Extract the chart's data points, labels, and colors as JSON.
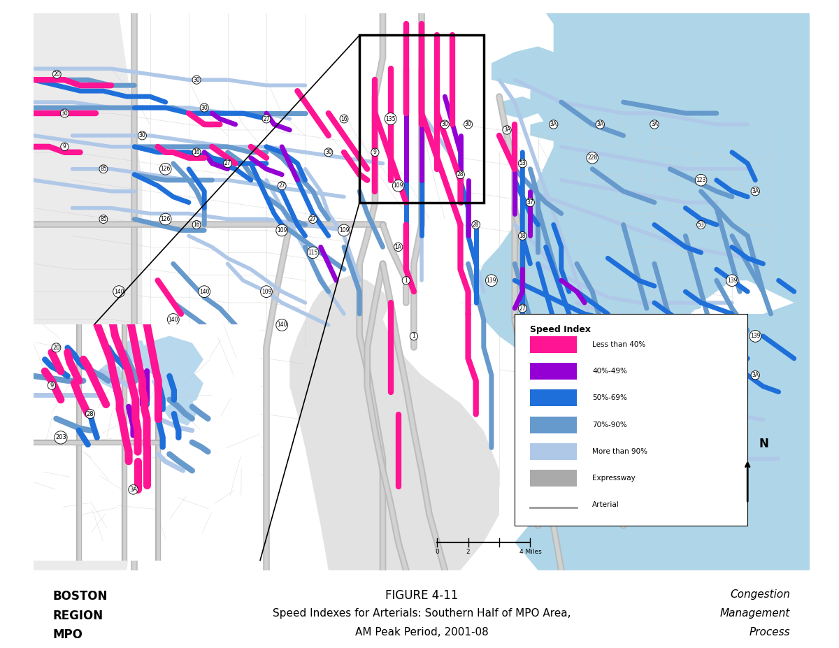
{
  "figure_width": 12.0,
  "figure_height": 9.27,
  "dpi": 100,
  "bg_color": "#ffffff",
  "ocean_color": "#aed6e8",
  "land_color": "#f0f0f0",
  "expressway_color": "#b0b0b0",
  "arterial_color": "#c8c8c8",
  "title_figure": "FIGURE 4-11",
  "title_line2": "Speed Indexes for Arterials: Southern Half of MPO Area,",
  "title_line3": "AM Peak Period, 2001-08",
  "left_text_lines": [
    "BOSTON",
    "REGION",
    "MPO"
  ],
  "right_text_italic": [
    "Congestion",
    "Management",
    "Process"
  ],
  "legend_title": "Speed Index",
  "legend_items": [
    {
      "label": "Less than 40%",
      "color": "#FF1493"
    },
    {
      "label": "40%-49%",
      "color": "#9400D3"
    },
    {
      "label": "50%-69%",
      "color": "#1E6FD9"
    },
    {
      "label": "70%-90%",
      "color": "#6699CC"
    },
    {
      "label": "More than 90%",
      "color": "#B0C8E8"
    },
    {
      "label": "Expressway",
      "color": "#AAAAAA"
    },
    {
      "label": "Arterial",
      "color": "#999999"
    }
  ],
  "hot_pink": "#FF1493",
  "purple": "#9400D3",
  "dark_blue": "#1E6FD9",
  "light_blue": "#6699CC",
  "pale_blue": "#B0C8E8"
}
